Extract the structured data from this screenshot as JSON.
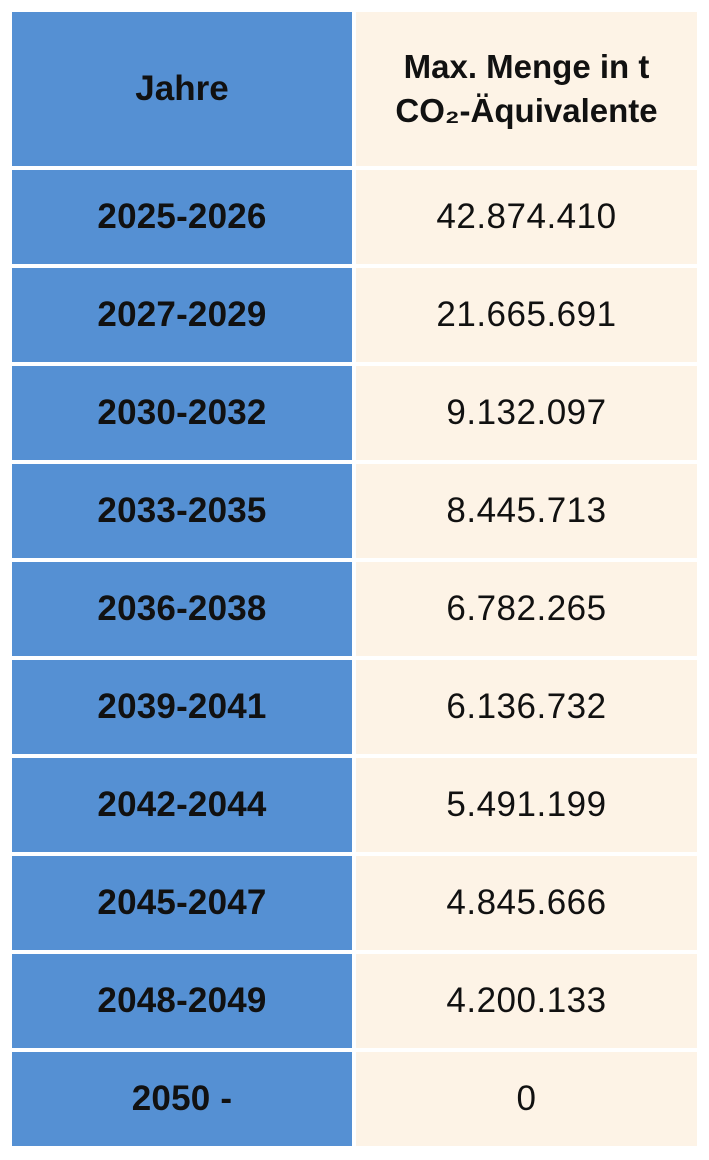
{
  "header": {
    "col_years": "Jahre",
    "col_value_line1": "Max. Menge in t",
    "col_value_line2": "CO₂-Äquivalente"
  },
  "rows": [
    {
      "years": "2025-2026",
      "value": "42.874.410"
    },
    {
      "years": "2027-2029",
      "value": "21.665.691"
    },
    {
      "years": "2030-2032",
      "value": "9.132.097"
    },
    {
      "years": "2033-2035",
      "value": "8.445.713"
    },
    {
      "years": "2036-2038",
      "value": "6.782.265"
    },
    {
      "years": "2039-2041",
      "value": "6.136.732"
    },
    {
      "years": "2042-2044",
      "value": "5.491.199"
    },
    {
      "years": "2045-2047",
      "value": "4.845.666"
    },
    {
      "years": "2048-2049",
      "value": "4.200.133"
    },
    {
      "years": "2050 -",
      "value": "0"
    }
  ],
  "colors": {
    "year_column": "#5590d3",
    "value_column": "#fdf3e6"
  }
}
